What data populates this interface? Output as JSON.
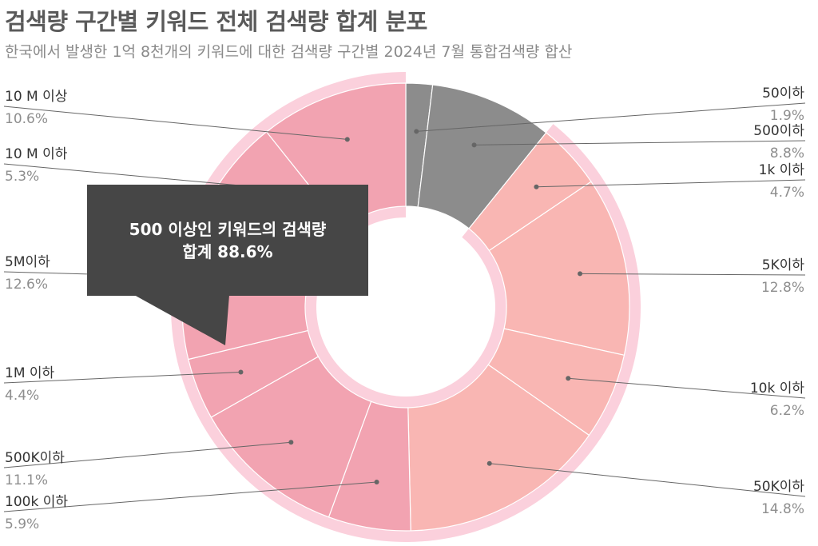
{
  "title": "검색량 구간별 키워드 전체 검색량 합계 분포",
  "subtitle": "한국에서 발생한 1억 8천개의 키워드에 대한 검색량 구간별 2024년 7월 통합검색량 합산",
  "callout": {
    "line1": "500 이상인 키워드의 검색량",
    "line2": "합계 88.6%"
  },
  "colors": {
    "gray": "#8c8c8c",
    "salmon": "#f9b6b3",
    "pink": "#f2a3b1",
    "ring": "#fbd0dc"
  },
  "chart_data": {
    "type": "pie",
    "variant": "donut",
    "slices": [
      {
        "label": "50이하",
        "value": 1.9,
        "value_text": "1.9%",
        "group": "gray"
      },
      {
        "label": "500이하",
        "value": 8.8,
        "value_text": "8.8%",
        "group": "gray"
      },
      {
        "label": "1k 이하",
        "value": 4.7,
        "value_text": "4.7%",
        "group": "salmon"
      },
      {
        "label": "5K이하",
        "value": 12.8,
        "value_text": "12.8%",
        "group": "salmon"
      },
      {
        "label": "10k 이하",
        "value": 6.2,
        "value_text": "6.2%",
        "group": "salmon"
      },
      {
        "label": "50K이하",
        "value": 14.8,
        "value_text": "14.8%",
        "group": "salmon"
      },
      {
        "label": "100k 이하",
        "value": 5.9,
        "value_text": "5.9%",
        "group": "pink"
      },
      {
        "label": "500K이하",
        "value": 11.1,
        "value_text": "11.1%",
        "group": "pink"
      },
      {
        "label": "1M 이하",
        "value": 4.4,
        "value_text": "4.4%",
        "group": "pink"
      },
      {
        "label": "5M이하",
        "value": 12.6,
        "value_text": "12.6%",
        "group": "pink"
      },
      {
        "label": "10 M 이하",
        "value": 5.3,
        "value_text": "5.3%",
        "group": "pink"
      },
      {
        "label": "10 M 이상",
        "value": 10.6,
        "value_text": "10.6%",
        "group": "pink"
      }
    ]
  }
}
